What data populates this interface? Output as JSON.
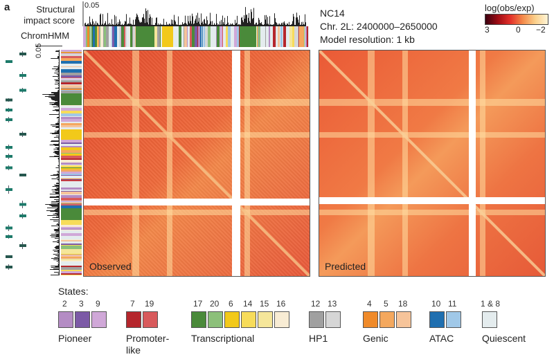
{
  "figure": {
    "panel_letter": "a",
    "track_labels": {
      "structural_line1": "Structural",
      "structural_line2": "impact score",
      "score_tick_top": "0.05",
      "chromhmm": "ChromHMM",
      "score_tick_left": "0.05"
    },
    "info": {
      "line1": "NC14",
      "line2": "Chr. 2L: 2400000–2650000",
      "line3": "Model resolution: 1 kb"
    },
    "colorbar": {
      "title": "log(obs/exp)",
      "ticks": [
        "3",
        "0",
        "−2"
      ],
      "colors": [
        "#3a0010",
        "#e3312a",
        "#fff4d6"
      ]
    },
    "maps": {
      "observed_label": "Observed",
      "predicted_label": "Predicted"
    },
    "legend": {
      "title": "States:",
      "groups": [
        {
          "label": "Pioneer",
          "label2": "",
          "states": [
            {
              "n": "2",
              "color": "#b48cc4"
            },
            {
              "n": "3",
              "color": "#7c5aa6"
            },
            {
              "n": "9",
              "color": "#d0a8d8"
            }
          ]
        },
        {
          "label": "Promoter-",
          "label2": "like",
          "states": [
            {
              "n": "7",
              "color": "#b5262c"
            },
            {
              "n": "19",
              "color": "#d85a5c"
            }
          ]
        },
        {
          "label": "Transcriptional",
          "label2": "",
          "states": [
            {
              "n": "17",
              "color": "#4a8a3a"
            },
            {
              "n": "20",
              "color": "#8cc07a"
            },
            {
              "n": "6",
              "color": "#f2c91a"
            },
            {
              "n": "14",
              "color": "#f7dc5a"
            },
            {
              "n": "15",
              "color": "#f5e69a"
            },
            {
              "n": "16",
              "color": "#f8ecd4"
            }
          ]
        },
        {
          "label": "HP1",
          "label2": "",
          "states": [
            {
              "n": "12",
              "color": "#a0a0a0"
            },
            {
              "n": "13",
              "color": "#d6d6d6"
            }
          ]
        },
        {
          "label": "Genic",
          "label2": "",
          "states": [
            {
              "n": "4",
              "color": "#ef8a2a"
            },
            {
              "n": "5",
              "color": "#f4a85e"
            },
            {
              "n": "18",
              "color": "#f6c49a"
            }
          ]
        },
        {
          "label": "ATAC",
          "label2": "",
          "states": [
            {
              "n": "10",
              "color": "#1f6fb0"
            },
            {
              "n": "11",
              "color": "#a0c8e8"
            }
          ]
        },
        {
          "label": "Quiescent",
          "label2": "",
          "states": [
            {
              "n": "1 & 8",
              "color": "#e4ecee"
            }
          ]
        }
      ]
    }
  }
}
